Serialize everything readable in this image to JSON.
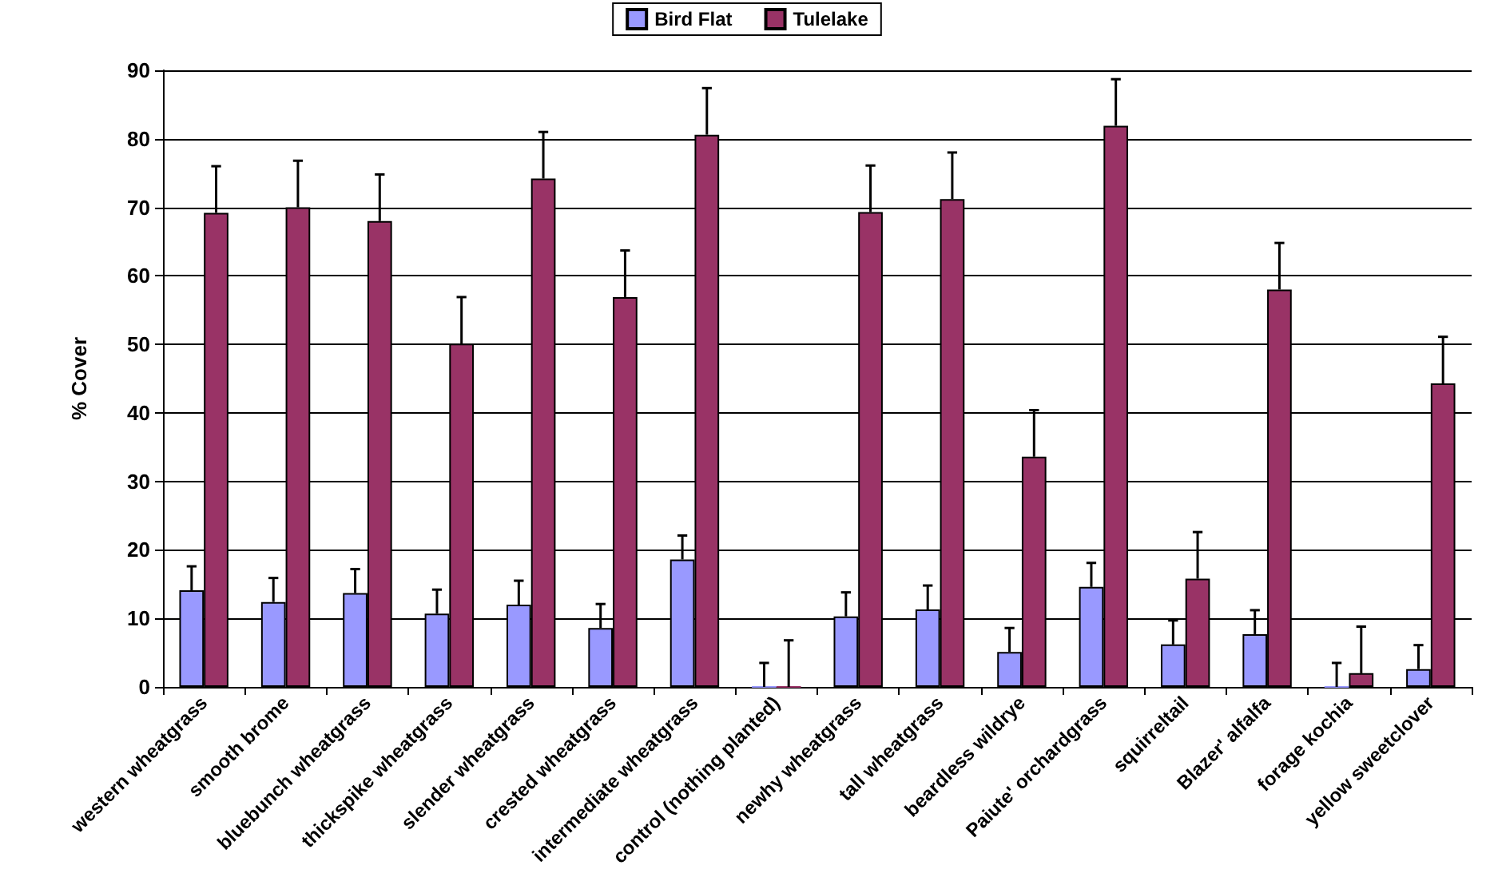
{
  "chart_data": {
    "type": "bar",
    "ylabel": "% Cover",
    "categories": [
      "western wheatgrass",
      "smooth brome",
      "bluebunch wheatgrass",
      "thickspike wheatgrass",
      "slender wheatgrass",
      "crested wheatgrass",
      "intermediate wheatgrass",
      "control (nothing planted)",
      "newhy wheatgrass",
      "tall wheatgrass",
      "beardless wildrye",
      "Paiute' orchardgrass",
      "squirreltail",
      "Blazer' alfalfa",
      "forage kochia",
      "yellow sweetclover"
    ],
    "series": [
      {
        "name": "Bird Flat",
        "color": "#9999ff",
        "values": [
          14.1,
          12.4,
          13.7,
          10.7,
          12.0,
          8.6,
          18.6,
          0,
          10.3,
          11.3,
          5.1,
          14.6,
          6.2,
          7.7,
          0,
          2.6
        ],
        "errors": [
          [
            14.1,
            17.6
          ],
          [
            12.4,
            15.9
          ],
          [
            13.7,
            17.2
          ],
          [
            10.7,
            14.2
          ],
          [
            12.0,
            15.5
          ],
          [
            8.6,
            12.1
          ],
          [
            18.6,
            22.1
          ],
          [
            0,
            3.5
          ],
          [
            10.3,
            13.8
          ],
          [
            11.3,
            14.8
          ],
          [
            5.1,
            8.6
          ],
          [
            14.6,
            18.1
          ],
          [
            6.2,
            9.7
          ],
          [
            7.7,
            11.2
          ],
          [
            0,
            3.5
          ],
          [
            2.6,
            6.1
          ]
        ]
      },
      {
        "name": "Tulelake",
        "color": "#993366",
        "values": [
          69.2,
          70.0,
          68.0,
          50.1,
          74.2,
          56.9,
          80.6,
          0,
          69.3,
          71.2,
          33.6,
          81.9,
          15.8,
          58.0,
          2.0,
          44.3
        ],
        "errors": [
          [
            69.2,
            76.0
          ],
          [
            70.0,
            76.8
          ],
          [
            68.0,
            74.8
          ],
          [
            50.1,
            56.9
          ],
          [
            74.2,
            81.0
          ],
          [
            56.9,
            63.7
          ],
          [
            80.6,
            87.4
          ],
          [
            0,
            6.8
          ],
          [
            69.3,
            76.1
          ],
          [
            71.2,
            78.0
          ],
          [
            33.6,
            40.4
          ],
          [
            81.9,
            88.7
          ],
          [
            15.8,
            22.6
          ],
          [
            58.0,
            64.8
          ],
          [
            2.0,
            8.8
          ],
          [
            44.3,
            51.1
          ]
        ]
      }
    ],
    "ylim": [
      0,
      90
    ],
    "yticks": [
      0,
      10,
      20,
      30,
      40,
      50,
      60,
      70,
      80,
      90
    ],
    "grid": "y",
    "legend": "top"
  }
}
